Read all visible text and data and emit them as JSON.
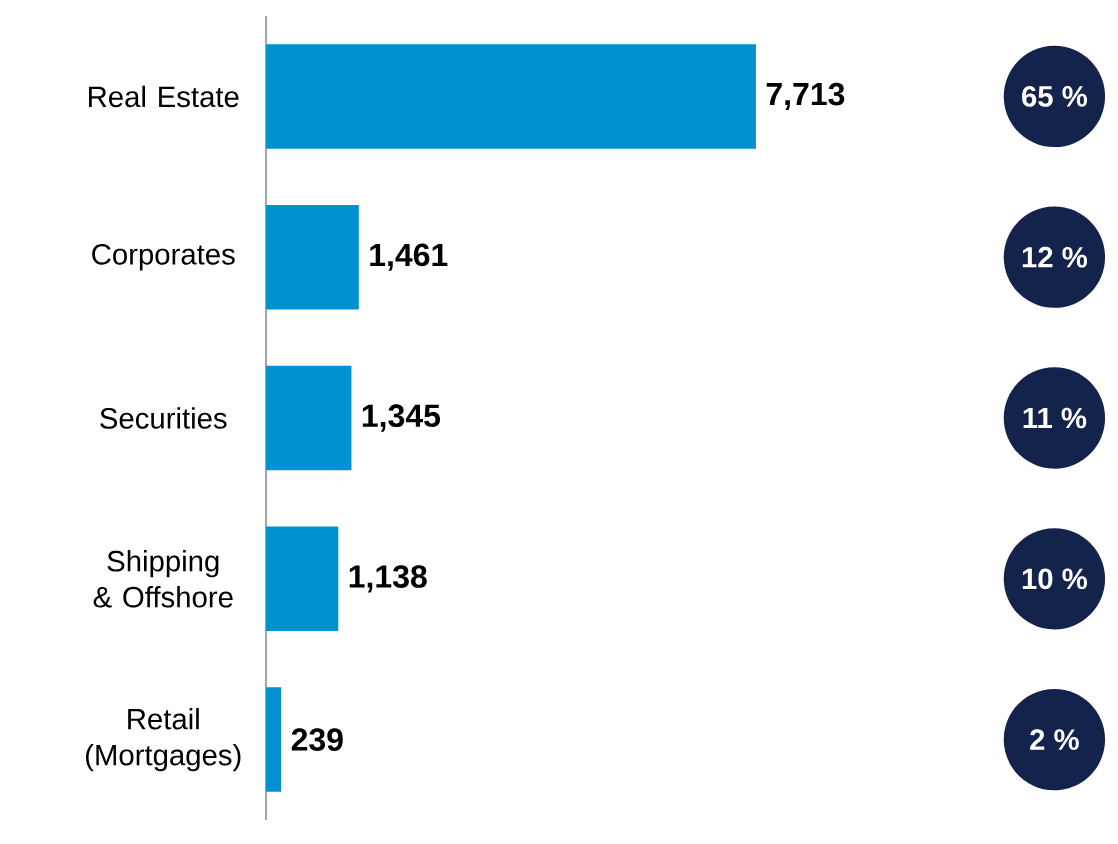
{
  "chart_data": {
    "type": "bar",
    "orientation": "horizontal",
    "categories": [
      "Real Estate",
      "Corporates",
      "Securities",
      "Shipping & Offshore",
      "Retail (Mortgages)"
    ],
    "values": [
      7713,
      1461,
      1345,
      1138,
      239
    ],
    "value_labels": [
      "7,713",
      "1,461",
      "1,345",
      "1,138",
      "239"
    ],
    "color": "#0091d0",
    "annotations": [
      "65 %",
      "12 %",
      "11 %",
      "10 %",
      "2 %"
    ]
  }
}
